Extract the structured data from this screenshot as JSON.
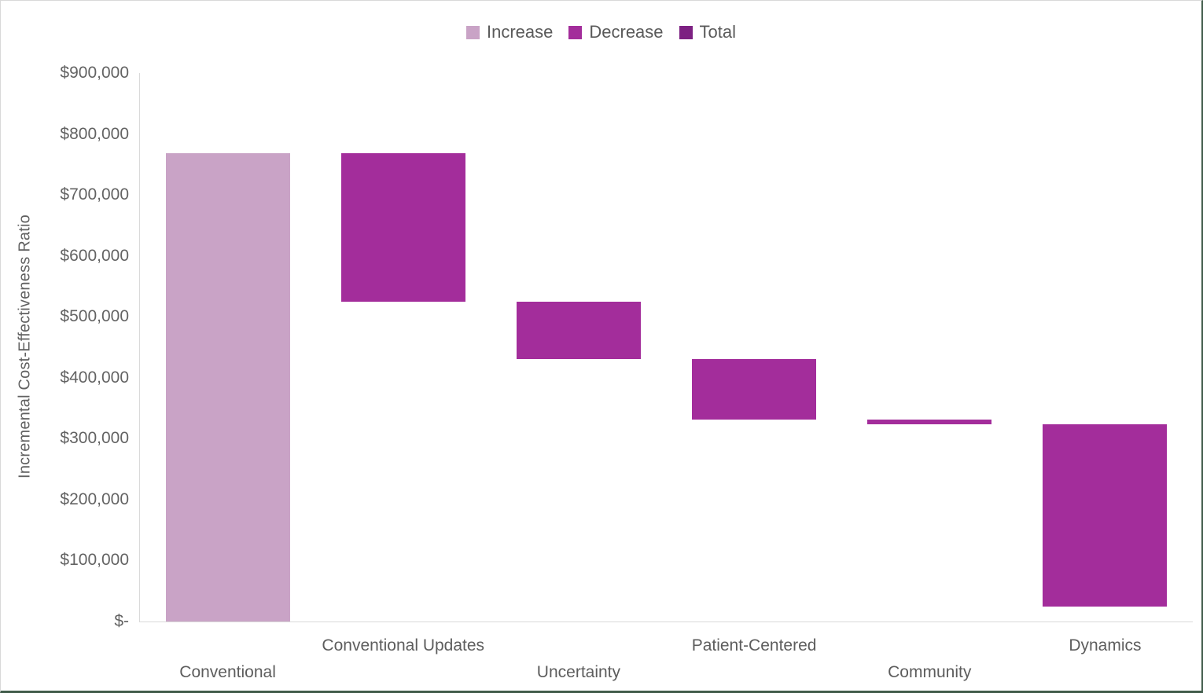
{
  "chart_data": {
    "type": "bar",
    "subtype": "waterfall",
    "title": "",
    "xlabel": "",
    "ylabel": "Incremental Cost-Effectiveness Ratio",
    "ylim": [
      0,
      900000
    ],
    "ytick_step": 100000,
    "ytick_labels": [
      "$-",
      "$100,000",
      "$200,000",
      "$300,000",
      "$400,000",
      "$500,000",
      "$600,000",
      "$700,000",
      "$800,000",
      "$900,000"
    ],
    "grid": false,
    "legend_position": "top-center",
    "legend": [
      {
        "label": "Increase",
        "color": "#c9a3c6"
      },
      {
        "label": "Decrease",
        "color": "#a32d9b"
      },
      {
        "label": "Total",
        "color": "#7d2182"
      }
    ],
    "categories": [
      "Conventional",
      "Conventional Updates",
      "Uncertainty",
      "Patient-Centered",
      "Community",
      "Dynamics"
    ],
    "bars": [
      {
        "category": "Conventional",
        "kind": "increase",
        "start": 0,
        "end": 768000,
        "delta": 768000
      },
      {
        "category": "Conventional Updates",
        "kind": "decrease",
        "start": 768000,
        "end": 525000,
        "delta": -243000
      },
      {
        "category": "Uncertainty",
        "kind": "decrease",
        "start": 525000,
        "end": 431000,
        "delta": -94000
      },
      {
        "category": "Patient-Centered",
        "kind": "decrease",
        "start": 431000,
        "end": 332000,
        "delta": -99000
      },
      {
        "category": "Community",
        "kind": "decrease",
        "start": 332000,
        "end": 323000,
        "delta": -9000
      },
      {
        "category": "Dynamics",
        "kind": "decrease",
        "start": 323000,
        "end": 25000,
        "delta": -298000
      }
    ],
    "colors": {
      "increase": "#c9a3c6",
      "decrease": "#a32d9b",
      "total": "#7d2182",
      "axis_line": "#d9d9d9",
      "axis_text": "#616161"
    }
  }
}
